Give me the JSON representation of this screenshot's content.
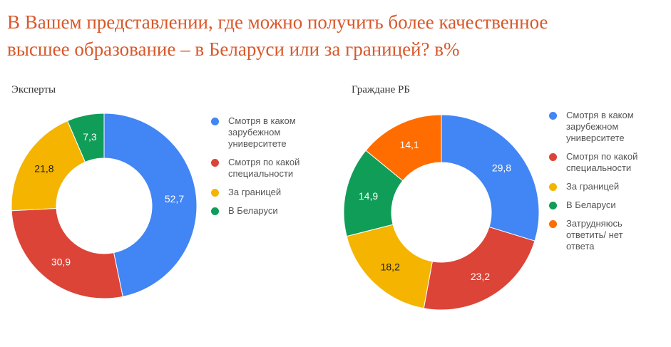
{
  "title": {
    "line1": "В Вашем представлении, где можно получить более качественное",
    "line2": "высшее образование – в Беларуси или за границей? в%"
  },
  "chart_data": [
    {
      "type": "pie",
      "title": "Эксперты",
      "categories": [
        "Смотря в каком зарубежном университете",
        "Смотря по какой специальности",
        "За границей",
        "В Беларуси"
      ],
      "values": [
        52.7,
        30.9,
        21.8,
        7.3
      ],
      "value_labels": [
        "52,7",
        "30,9",
        "21,8",
        "7,3"
      ],
      "colors": [
        "#4285f4",
        "#db4437",
        "#f4b400",
        "#0f9d58"
      ],
      "legend_position": "right",
      "legend": [
        "Смотря в каком\nзарубежном\nуниверситете",
        "Смотря по какой\nспециальности",
        "За границей",
        "В Беларуси"
      ]
    },
    {
      "type": "pie",
      "title": "Граждане РБ",
      "categories": [
        "Смотря в каком зарубежном университете",
        "Смотря по какой специальности",
        "За границей",
        "В Беларуси",
        "Затрудняюсь ответить/ нет ответа"
      ],
      "values": [
        29.8,
        23.2,
        18.2,
        14.9,
        14.1
      ],
      "value_labels": [
        "29,8",
        "23,2",
        "18,2",
        "14,9",
        "14,1"
      ],
      "colors": [
        "#4285f4",
        "#db4437",
        "#f4b400",
        "#0f9d58",
        "#ff6d00"
      ],
      "legend_position": "right",
      "legend": [
        "Смотря в каком\nзарубежном\nуниверситете",
        "Смотря по какой\nспециальности",
        "За границей",
        "В Беларуси",
        "Затрудняюсь\nответить/ нет\nответа"
      ]
    }
  ]
}
